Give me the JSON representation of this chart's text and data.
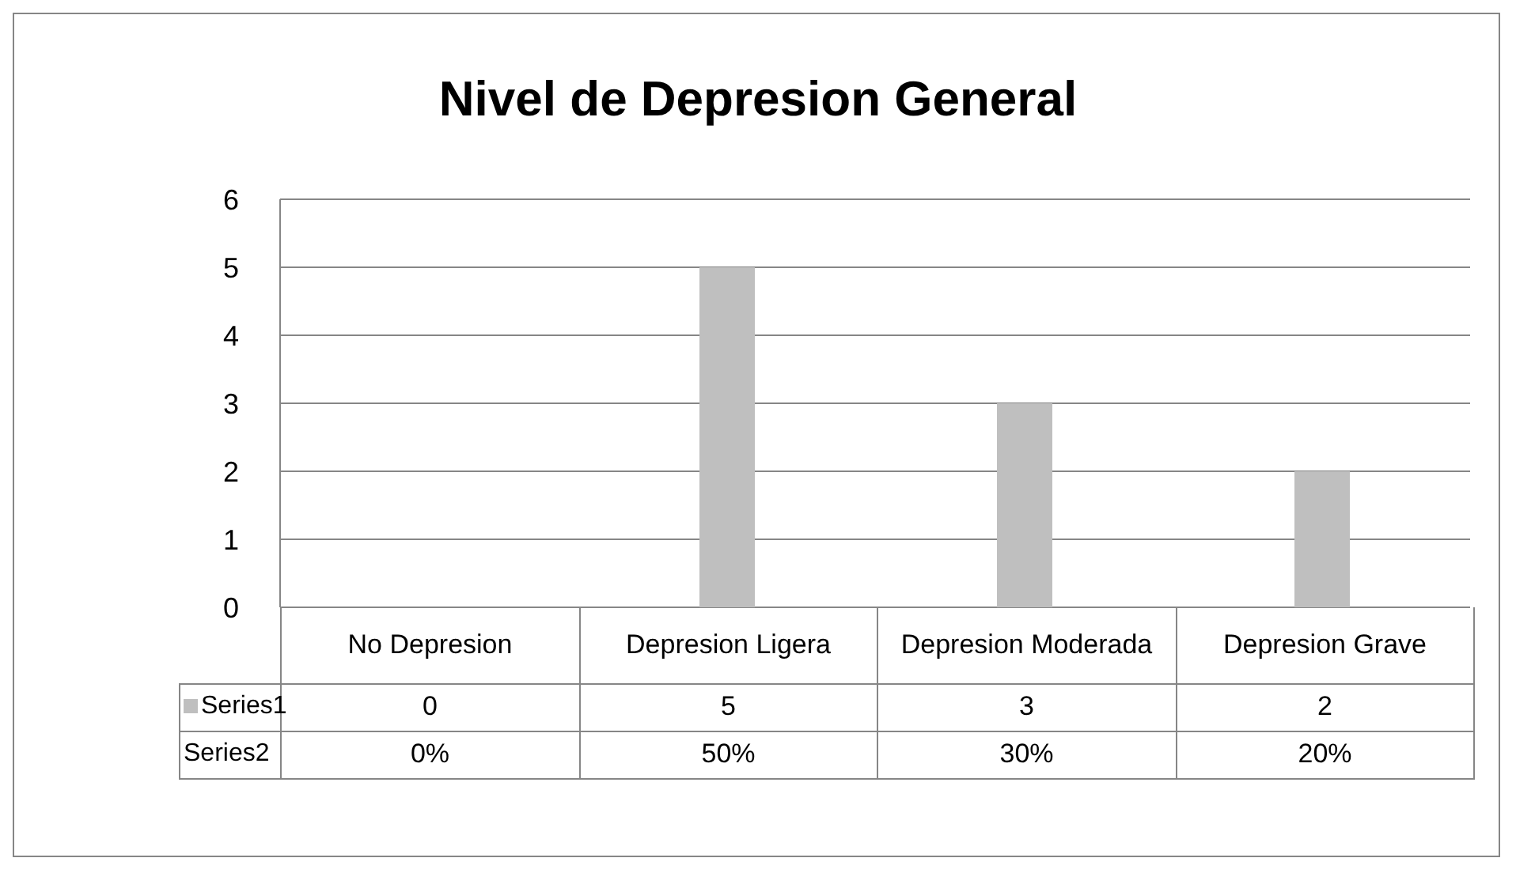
{
  "chart_data": {
    "type": "bar",
    "title": "Nivel de Depresion General",
    "categories": [
      "No Depresion",
      "Depresion Ligera",
      "Depresion Moderada",
      "Depresion Grave"
    ],
    "series": [
      {
        "name": "Series1",
        "color": "#bfbfbf",
        "values": [
          0,
          5,
          3,
          2
        ],
        "value_labels": [
          "0",
          "5",
          "3",
          "2"
        ]
      }
    ],
    "annotations": [
      "Series2",
      "0%",
      "50%",
      "30%",
      "20%"
    ],
    "ylim": [
      0,
      6
    ],
    "yticks": [
      0,
      1,
      2,
      3,
      4,
      5,
      6
    ],
    "grid": "y"
  }
}
